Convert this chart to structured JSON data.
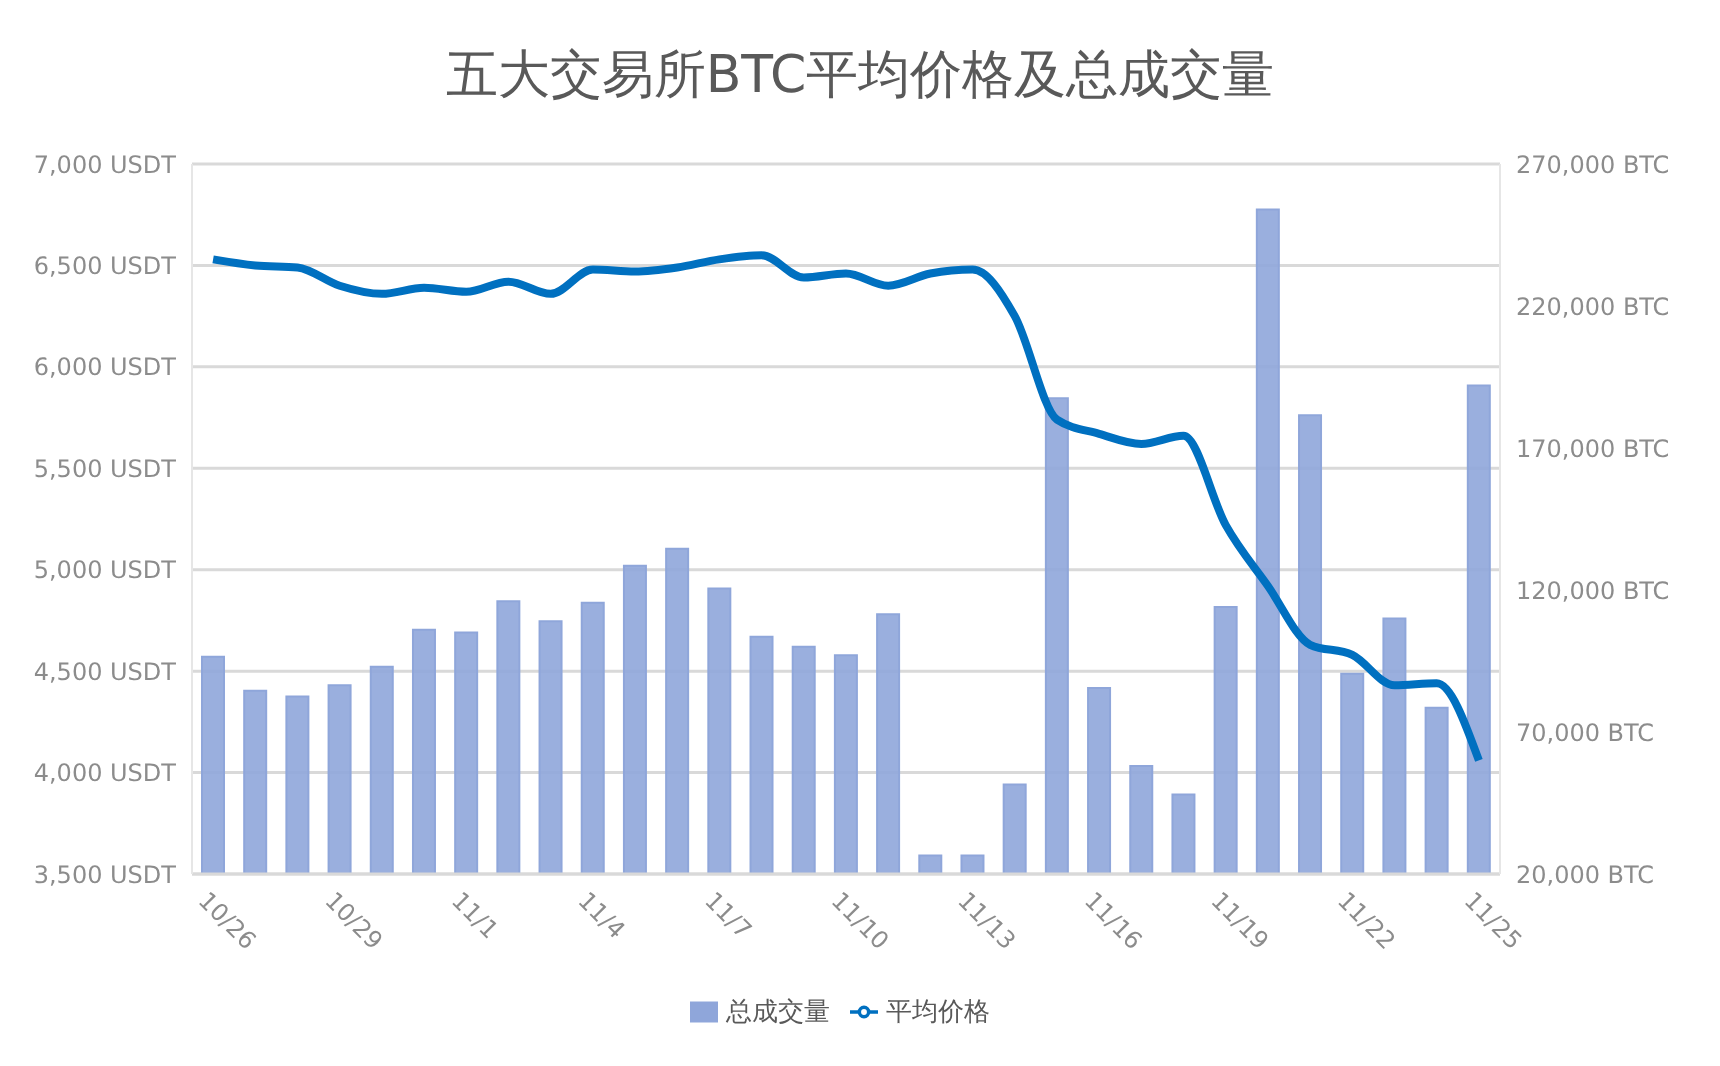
{
  "chart_data": {
    "type": "bar",
    "title": "五大交易所BTC平均价格及总成交量",
    "categories": [
      "10/26",
      null,
      null,
      "10/29",
      null,
      null,
      "11/1",
      null,
      null,
      "11/4",
      null,
      null,
      "11/7",
      null,
      null,
      "11/10",
      null,
      null,
      "11/13",
      null,
      null,
      "11/16",
      null,
      null,
      "11/19",
      null,
      null,
      "11/22",
      null,
      null,
      "11/25"
    ],
    "series": [
      {
        "name": "总成交量",
        "axis": "y2",
        "color": "#8fa6da",
        "values": [
          96500,
          84500,
          82500,
          86500,
          93000,
          106000,
          105000,
          116000,
          109000,
          115500,
          128500,
          134500,
          120500,
          103500,
          100000,
          97000,
          111500,
          26500,
          26500,
          51500,
          187500,
          85500,
          58000,
          48000,
          114000,
          254000,
          181500,
          90500,
          110000,
          78500,
          192000
        ]
      },
      {
        "name": "平均价格",
        "type": "line",
        "color": "#0070c0",
        "values": [
          6530,
          6500,
          6490,
          6400,
          6360,
          6390,
          6370,
          6420,
          6360,
          6480,
          6470,
          6490,
          6530,
          6550,
          6440,
          6460,
          6400,
          6460,
          6480,
          6250,
          5740,
          5670,
          5620,
          5660,
          5220,
          4920,
          4630,
          4580,
          4430,
          4440,
          4060
        ]
      }
    ],
    "ylim": [
      3500,
      7000
    ],
    "yticks": [
      {
        "value": 3500,
        "label": "3,500 USDT"
      },
      {
        "value": 4000,
        "label": "4,000 USDT"
      },
      {
        "value": 4500,
        "label": "4,500 USDT"
      },
      {
        "value": 5000,
        "label": "5,000 USDT"
      },
      {
        "value": 5500,
        "label": "5,500 USDT"
      },
      {
        "value": 6000,
        "label": "6,000 USDT"
      },
      {
        "value": 6500,
        "label": "6,500 USDT"
      },
      {
        "value": 7000,
        "label": "7,000 USDT"
      }
    ],
    "y2lim": [
      20000,
      270000
    ],
    "y2ticks": [
      {
        "value": 20000,
        "label": "20,000 BTC"
      },
      {
        "value": 70000,
        "label": "70,000 BTC"
      },
      {
        "value": 120000,
        "label": "120,000 BTC"
      },
      {
        "value": 170000,
        "label": "170,000 BTC"
      },
      {
        "value": 220000,
        "label": "220,000 BTC"
      },
      {
        "value": 270000,
        "label": "270,000 BTC"
      }
    ],
    "grid": "y",
    "legend": "bottom",
    "marker": "none"
  }
}
